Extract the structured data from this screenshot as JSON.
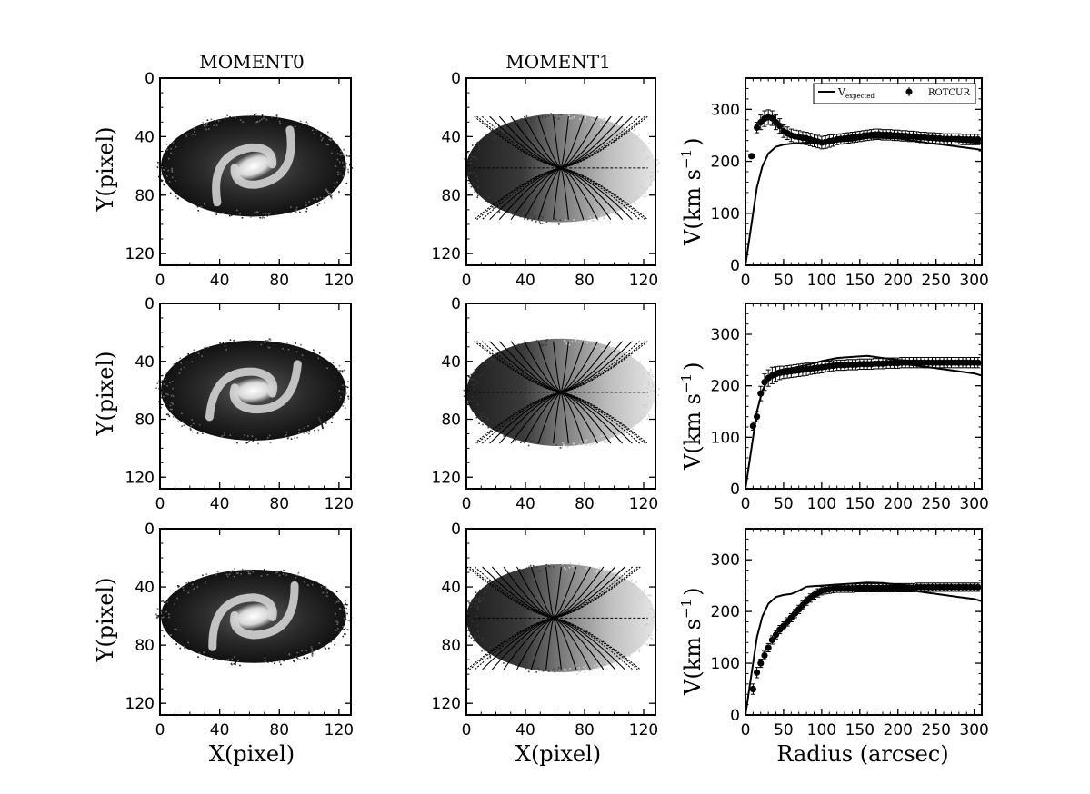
{
  "columns": {
    "left_title": "MOMENT0",
    "middle_title": "MOMENT1",
    "xlabel_pixel": "X(pixel)",
    "ylabel_pixel": "Y(pixel)",
    "xlabel_radius": "Radius (arcsec)",
    "ylabel_velocity": "V(km s",
    "ylabel_velocity_exp": "−1",
    "ylabel_velocity_close": ")"
  },
  "legend": {
    "expected_label": "V",
    "expected_sub": "expected",
    "rotcur_label": "ROTCUR"
  },
  "chart_data": [
    {
      "type": "line",
      "title": "",
      "row": 1,
      "xlabel": "",
      "ylabel": "V(km s^-1)",
      "xlim": [
        0,
        310
      ],
      "ylim": [
        0,
        360
      ],
      "xticks": [
        0,
        50,
        100,
        150,
        200,
        250,
        300
      ],
      "yticks": [
        0,
        100,
        200,
        300
      ],
      "legend_position": "top-right",
      "series": [
        {
          "name": "V_expected (upper)",
          "x": [
            0,
            8,
            15,
            22,
            30,
            40,
            50,
            60,
            80,
            100,
            120,
            140,
            160,
            180,
            200,
            220,
            240,
            260,
            280,
            300,
            310
          ],
          "values": [
            0,
            80,
            150,
            190,
            215,
            228,
            232,
            234,
            236,
            236,
            238,
            240,
            245,
            250,
            252,
            250,
            245,
            242,
            238,
            236,
            235
          ]
        },
        {
          "name": "V_expected (lower)",
          "x": [
            150,
            180,
            200,
            220,
            240,
            260,
            280,
            300,
            310
          ],
          "values": [
            245,
            245,
            244,
            240,
            235,
            232,
            228,
            224,
            222
          ]
        },
        {
          "name": "ROTCUR",
          "x": [
            8,
            15,
            20,
            25,
            30,
            35,
            40,
            45,
            50,
            55,
            60,
            65,
            70,
            75,
            80,
            85,
            90,
            95,
            100,
            105,
            110,
            115,
            120,
            125,
            130,
            135,
            140,
            145,
            150,
            155,
            160,
            165,
            170,
            175,
            180,
            185,
            190,
            195,
            200,
            205,
            210,
            215,
            220,
            225,
            230,
            235,
            240,
            245,
            250,
            255,
            260,
            265,
            270,
            275,
            280,
            285,
            290,
            295,
            300,
            305
          ],
          "values": [
            210,
            265,
            275,
            282,
            285,
            283,
            275,
            268,
            258,
            254,
            250,
            248,
            247,
            245,
            244,
            242,
            240,
            238,
            236,
            237,
            239,
            240,
            242,
            243,
            244,
            245,
            246,
            247,
            248,
            249,
            250,
            251,
            252,
            252,
            251,
            251,
            251,
            250,
            250,
            249,
            249,
            248,
            248,
            247,
            246,
            246,
            245,
            245,
            244,
            244,
            243,
            243,
            243,
            243,
            243,
            242,
            242,
            242,
            242,
            242
          ],
          "errors": [
            4,
            10,
            14,
            15,
            14,
            14,
            14,
            14,
            12,
            12,
            12,
            12,
            12,
            12,
            12,
            12,
            12,
            12,
            12,
            12,
            12,
            11,
            10,
            10,
            10,
            10,
            10,
            10,
            10,
            10,
            10,
            10,
            10,
            10,
            10,
            10,
            10,
            10,
            10,
            10,
            10,
            10,
            10,
            10,
            10,
            10,
            10,
            10,
            10,
            10,
            10,
            10,
            10,
            10,
            10,
            10,
            10,
            10,
            10,
            10
          ]
        }
      ]
    },
    {
      "type": "line",
      "title": "",
      "row": 2,
      "xlabel": "",
      "ylabel": "V(km s^-1)",
      "xlim": [
        0,
        310
      ],
      "ylim": [
        0,
        360
      ],
      "xticks": [
        0,
        50,
        100,
        150,
        200,
        250,
        300
      ],
      "yticks": [
        0,
        100,
        200,
        300
      ],
      "series": [
        {
          "name": "V_expected (upper)",
          "x": [
            0,
            8,
            15,
            22,
            30,
            40,
            50,
            60,
            80,
            100,
            120,
            140,
            160,
            180,
            200,
            220,
            240,
            260,
            280,
            300,
            310
          ],
          "values": [
            0,
            80,
            150,
            190,
            215,
            228,
            232,
            234,
            240,
            248,
            254,
            256,
            258,
            254,
            250,
            248,
            247,
            246,
            246,
            246,
            246
          ]
        },
        {
          "name": "V_expected (lower)",
          "x": [
            150,
            180,
            200,
            220,
            240,
            260,
            280,
            300,
            310
          ],
          "values": [
            240,
            242,
            244,
            240,
            236,
            232,
            228,
            224,
            220
          ]
        },
        {
          "name": "ROTCUR",
          "x": [
            10,
            15,
            20,
            25,
            30,
            35,
            40,
            45,
            50,
            55,
            60,
            65,
            70,
            75,
            80,
            85,
            90,
            95,
            100,
            105,
            110,
            115,
            120,
            125,
            130,
            135,
            140,
            145,
            150,
            155,
            160,
            165,
            170,
            175,
            180,
            185,
            190,
            195,
            200,
            205,
            210,
            215,
            220,
            225,
            230,
            235,
            240,
            245,
            250,
            255,
            260,
            265,
            270,
            275,
            280,
            285,
            290,
            295,
            300,
            305
          ],
          "values": [
            122,
            140,
            185,
            207,
            215,
            220,
            223,
            225,
            226,
            227,
            228,
            229,
            230,
            231,
            232,
            233,
            234,
            235,
            236,
            237,
            238,
            239,
            240,
            240,
            240,
            241,
            241,
            241,
            242,
            242,
            242,
            242,
            243,
            243,
            243,
            244,
            244,
            244,
            244,
            245,
            245,
            245,
            245,
            245,
            245,
            245,
            245,
            245,
            245,
            245,
            245,
            245,
            245,
            245,
            245,
            245,
            245,
            245,
            245,
            245
          ],
          "errors": [
            8,
            10,
            14,
            16,
            16,
            16,
            14,
            13,
            12,
            12,
            12,
            12,
            12,
            12,
            12,
            11,
            11,
            11,
            11,
            10,
            10,
            10,
            10,
            10,
            10,
            10,
            10,
            10,
            10,
            10,
            10,
            10,
            10,
            10,
            10,
            10,
            10,
            10,
            10,
            10,
            10,
            10,
            10,
            10,
            10,
            10,
            10,
            10,
            10,
            10,
            10,
            10,
            10,
            10,
            10,
            10,
            10,
            10,
            10,
            10
          ]
        }
      ]
    },
    {
      "type": "line",
      "title": "",
      "row": 3,
      "xlabel": "Radius (arcsec)",
      "ylabel": "V(km s^-1)",
      "xlim": [
        0,
        310
      ],
      "ylim": [
        0,
        360
      ],
      "xticks": [
        0,
        50,
        100,
        150,
        200,
        250,
        300
      ],
      "yticks": [
        0,
        100,
        200,
        300
      ],
      "series": [
        {
          "name": "V_expected (upper)",
          "x": [
            0,
            8,
            15,
            22,
            30,
            40,
            50,
            60,
            70,
            80,
            100,
            120,
            140,
            160,
            180,
            200,
            220,
            240,
            260,
            280,
            300,
            310
          ],
          "values": [
            0,
            80,
            150,
            190,
            215,
            228,
            232,
            234,
            240,
            248,
            250,
            252,
            254,
            256,
            255,
            252,
            250,
            248,
            246,
            246,
            246,
            246
          ]
        },
        {
          "name": "V_expected (lower)",
          "x": [
            150,
            180,
            200,
            220,
            240,
            260,
            280,
            300,
            310
          ],
          "values": [
            244,
            245,
            244,
            240,
            236,
            232,
            228,
            224,
            220
          ]
        },
        {
          "name": "ROTCUR",
          "x": [
            10,
            15,
            20,
            25,
            30,
            35,
            40,
            45,
            50,
            55,
            60,
            65,
            70,
            75,
            80,
            85,
            90,
            95,
            100,
            105,
            110,
            115,
            120,
            125,
            130,
            135,
            140,
            145,
            150,
            155,
            160,
            165,
            170,
            175,
            180,
            185,
            190,
            195,
            200,
            205,
            210,
            215,
            220,
            225,
            230,
            235,
            240,
            245,
            250,
            255,
            260,
            265,
            270,
            275,
            280,
            285,
            290,
            295,
            300,
            305
          ],
          "values": [
            50,
            82,
            100,
            115,
            130,
            145,
            155,
            165,
            172,
            180,
            188,
            196,
            204,
            212,
            220,
            226,
            232,
            236,
            240,
            242,
            243,
            244,
            245,
            245,
            245,
            245,
            245,
            246,
            246,
            246,
            246,
            246,
            246,
            246,
            246,
            246,
            246,
            246,
            246,
            246,
            246,
            246,
            246,
            247,
            247,
            247,
            247,
            247,
            247,
            247,
            247,
            247,
            247,
            247,
            247,
            247,
            247,
            247,
            247,
            247
          ],
          "errors": [
            10,
            10,
            8,
            8,
            8,
            8,
            8,
            8,
            8,
            8,
            8,
            8,
            8,
            8,
            8,
            8,
            8,
            8,
            8,
            8,
            8,
            8,
            8,
            8,
            8,
            8,
            8,
            8,
            8,
            8,
            8,
            8,
            8,
            8,
            8,
            8,
            8,
            8,
            8,
            8,
            8,
            8,
            8,
            8,
            8,
            8,
            8,
            8,
            8,
            8,
            8,
            8,
            8,
            8,
            8,
            8,
            8,
            8,
            8,
            8
          ]
        }
      ]
    },
    {
      "type": "heatmap",
      "title": "MOMENT0",
      "panels": 3,
      "xlabel": "X(pixel)",
      "ylabel": "Y(pixel)",
      "xlim": [
        0,
        128
      ],
      "ylim": [
        128,
        0
      ],
      "xticks": [
        0,
        40,
        80,
        120
      ],
      "yticks": [
        0,
        40,
        80,
        120
      ]
    },
    {
      "type": "heatmap",
      "title": "MOMENT1",
      "panels": 3,
      "xlabel": "X(pixel)",
      "ylabel": "",
      "xlim": [
        0,
        128
      ],
      "ylim": [
        128,
        0
      ],
      "xticks": [
        0,
        40,
        80,
        120
      ],
      "yticks": [
        0,
        40,
        80,
        120
      ]
    }
  ]
}
